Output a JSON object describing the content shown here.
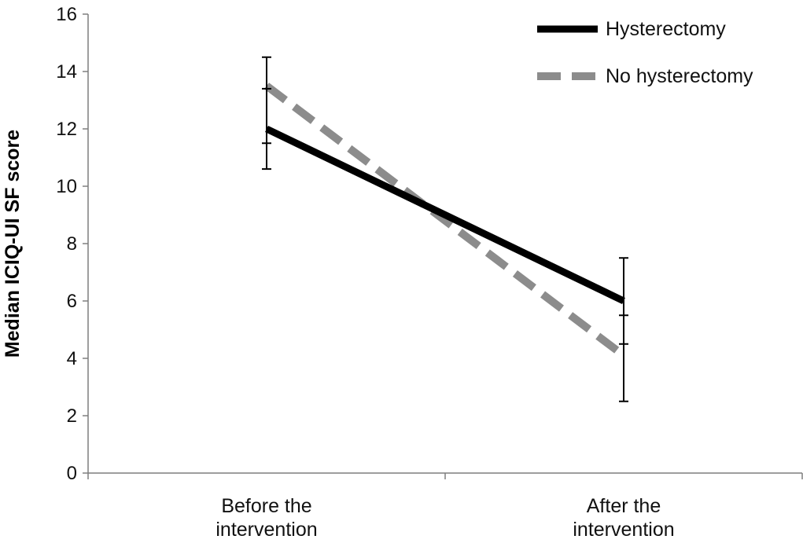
{
  "chart_data": {
    "type": "line",
    "title": "",
    "xlabel": "",
    "ylabel": "Median ICIQ-UI SF score",
    "categories": [
      [
        "Before the",
        "intervention"
      ],
      [
        "After the",
        "intervention"
      ]
    ],
    "ylim": [
      0,
      16
    ],
    "yticks": [
      0,
      2,
      4,
      6,
      8,
      10,
      12,
      14,
      16
    ],
    "grid": false,
    "legend_position": "top-right",
    "series": [
      {
        "name": "Hysterectomy",
        "values": [
          12,
          6
        ],
        "error_low": [
          10.6,
          2.5
        ],
        "error_high": [
          14.5,
          7.5
        ],
        "color": "#000000",
        "dash": "solid"
      },
      {
        "name": "No hysterectomy",
        "values": [
          13.5,
          4.1
        ],
        "error_low": [
          11.5,
          4.5
        ],
        "error_high": [
          13.4,
          5.5
        ],
        "color": "#8c8c8c",
        "dash": "dashed"
      }
    ]
  }
}
